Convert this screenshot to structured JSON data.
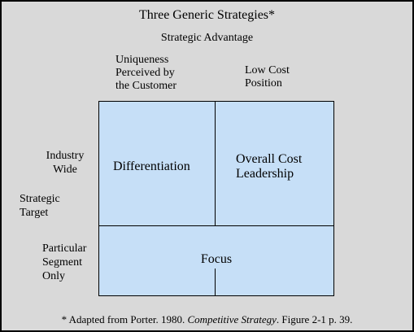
{
  "title": "Three Generic Strategies*",
  "subtitle": "Strategic Advantage",
  "column_headers": {
    "uniqueness": "Uniqueness\nPerceived by\nthe Customer",
    "low_cost": "Low Cost\nPosition"
  },
  "row_headers": {
    "industry_wide": "Industry\nWide",
    "strategic_target": "Strategic\nTarget",
    "particular_segment": "Particular\nSegment\n Only"
  },
  "cells": {
    "differentiation": "Differentiation",
    "cost_leadership": "Overall Cost\nLeadership",
    "focus": "Focus"
  },
  "footnote": {
    "prefix": "* Adapted from Porter. 1980. ",
    "book": "Competitive Strategy",
    "suffix": ". Figure 2-1 p. 39."
  },
  "colors": {
    "background": "#d9d9d9",
    "matrix_fill": "#c6dff7",
    "border": "#000000"
  }
}
